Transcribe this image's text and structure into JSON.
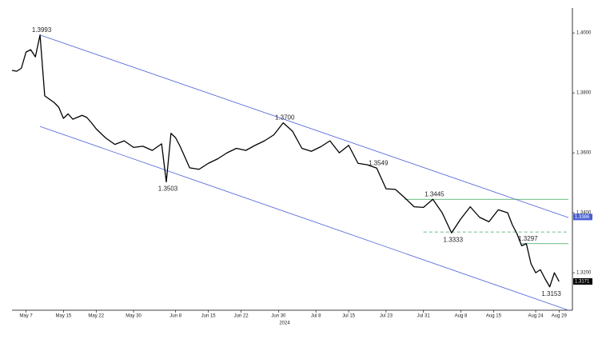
{
  "chart_data": {
    "type": "line",
    "xlabel": "2024",
    "xlim": [
      "2024-05-04",
      "2024-08-31"
    ],
    "ylim": [
      1.3075,
      1.4083
    ],
    "xticks": [
      {
        "value": "2024-05-07",
        "label": "May 7"
      },
      {
        "value": "2024-05-15",
        "label": "May 15"
      },
      {
        "value": "2024-05-22",
        "label": "May 22"
      },
      {
        "value": "2024-05-30",
        "label": "May 30"
      },
      {
        "value": "2024-06-08",
        "label": "Jun 8"
      },
      {
        "value": "2024-06-15",
        "label": "Jun 15"
      },
      {
        "value": "2024-06-22",
        "label": "Jun 22"
      },
      {
        "value": "2024-06-30",
        "label": "Jun 30"
      },
      {
        "value": "2024-07-08",
        "label": "Jul 8"
      },
      {
        "value": "2024-07-15",
        "label": "Jul 15"
      },
      {
        "value": "2024-07-23",
        "label": "Jul 23"
      },
      {
        "value": "2024-07-31",
        "label": "Jul 31"
      },
      {
        "value": "2024-08-08",
        "label": "Aug 8"
      },
      {
        "value": "2024-08-15",
        "label": "Aug 15"
      },
      {
        "value": "2024-08-24",
        "label": "Aug 24"
      },
      {
        "value": "2024-08-29",
        "label": "Aug 29"
      }
    ],
    "yticks": [
      {
        "value": 1.32,
        "label": "1.3200"
      },
      {
        "value": 1.34,
        "label": "1.3400"
      },
      {
        "value": 1.36,
        "label": "1.3600"
      },
      {
        "value": 1.38,
        "label": "1.3800"
      },
      {
        "value": 1.4,
        "label": "1.4000"
      }
    ],
    "series": [
      {
        "color": "#000000",
        "x": [
          "2024-05-04",
          "2024-05-05",
          "2024-05-06",
          "2024-05-07",
          "2024-05-08",
          "2024-05-09",
          "2024-05-10",
          "2024-05-11",
          "2024-05-13",
          "2024-05-14",
          "2024-05-15",
          "2024-05-16",
          "2024-05-17",
          "2024-05-19",
          "2024-05-20",
          "2024-05-21",
          "2024-05-22",
          "2024-05-24",
          "2024-05-26",
          "2024-05-28",
          "2024-05-30",
          "2024-06-01",
          "2024-06-03",
          "2024-06-05",
          "2024-06-06",
          "2024-06-07",
          "2024-06-08",
          "2024-06-09",
          "2024-06-11",
          "2024-06-13",
          "2024-06-15",
          "2024-06-17",
          "2024-06-19",
          "2024-06-21",
          "2024-06-23",
          "2024-06-25",
          "2024-06-27",
          "2024-06-29",
          "2024-07-01",
          "2024-07-03",
          "2024-07-05",
          "2024-07-07",
          "2024-07-09",
          "2024-07-11",
          "2024-07-13",
          "2024-07-15",
          "2024-07-17",
          "2024-07-19",
          "2024-07-21",
          "2024-07-23",
          "2024-07-25",
          "2024-07-27",
          "2024-07-29",
          "2024-07-31",
          "2024-08-02",
          "2024-08-04",
          "2024-08-06",
          "2024-08-08",
          "2024-08-10",
          "2024-08-12",
          "2024-08-14",
          "2024-08-16",
          "2024-08-18",
          "2024-08-19",
          "2024-08-20",
          "2024-08-21",
          "2024-08-22",
          "2024-08-23",
          "2024-08-24",
          "2024-08-25",
          "2024-08-26",
          "2024-08-27",
          "2024-08-28",
          "2024-08-29"
        ],
        "values": [
          1.3875,
          1.3872,
          1.3882,
          1.3936,
          1.3944,
          1.392,
          1.3993,
          1.379,
          1.3768,
          1.3752,
          1.3715,
          1.373,
          1.3712,
          1.3725,
          1.3718,
          1.37,
          1.368,
          1.365,
          1.3628,
          1.364,
          1.3618,
          1.3622,
          1.3608,
          1.363,
          1.3503,
          1.3665,
          1.365,
          1.362,
          1.355,
          1.3545,
          1.3565,
          1.358,
          1.36,
          1.3615,
          1.3608,
          1.3625,
          1.364,
          1.366,
          1.37,
          1.3672,
          1.3615,
          1.3605,
          1.362,
          1.364,
          1.36,
          1.3625,
          1.3565,
          1.356,
          1.3549,
          1.348,
          1.3478,
          1.345,
          1.342,
          1.3418,
          1.3445,
          1.34,
          1.3333,
          1.338,
          1.342,
          1.3385,
          1.337,
          1.341,
          1.34,
          1.336,
          1.333,
          1.329,
          1.3297,
          1.323,
          1.32,
          1.321,
          1.318,
          1.3153,
          1.32,
          1.3171
        ]
      }
    ],
    "trendlines": [
      {
        "color": "#4a5fd6",
        "x": [
          "2024-05-10",
          "2024-08-31"
        ],
        "values": [
          1.3993,
          1.3384
        ]
      },
      {
        "color": "#4a5fd6",
        "x": [
          "2024-05-10",
          "2024-08-31"
        ],
        "values": [
          1.3688,
          1.3075
        ]
      },
      {
        "color": "#3aa35a",
        "x": [
          "2024-07-27",
          "2024-08-31"
        ],
        "values": [
          1.3445,
          1.3445
        ]
      },
      {
        "color": "#3aa35a",
        "x": [
          "2024-08-21",
          "2024-08-31"
        ],
        "values": [
          1.3297,
          1.3297
        ]
      },
      {
        "color": "#3aa35a",
        "dashed": true,
        "x": [
          "2024-07-31",
          "2024-08-31"
        ],
        "values": [
          1.3336,
          1.3336
        ]
      }
    ],
    "annotations": [
      {
        "label": "1.3993",
        "x": "2024-05-10",
        "value": 1.3993
      },
      {
        "label": "1.3503",
        "x": "2024-06-06",
        "value": 1.3503
      },
      {
        "label": "1.3700",
        "x": "2024-07-01",
        "value": 1.37
      },
      {
        "label": "1.3549",
        "x": "2024-07-21",
        "value": 1.3549
      },
      {
        "label": "1.3445",
        "x": "2024-08-02",
        "value": 1.3445
      },
      {
        "label": "1.3333",
        "x": "2024-08-06",
        "value": 1.3333
      },
      {
        "label": "1.3297",
        "x": "2024-08-22",
        "value": 1.3297
      },
      {
        "label": "1.3153",
        "x": "2024-08-27",
        "value": 1.3153
      }
    ],
    "axis_tags": [
      {
        "label": "1.3386",
        "value": 1.3386,
        "color": "#4a5fd6"
      },
      {
        "label": "1.3171",
        "value": 1.3171,
        "color": "#000000"
      }
    ]
  }
}
